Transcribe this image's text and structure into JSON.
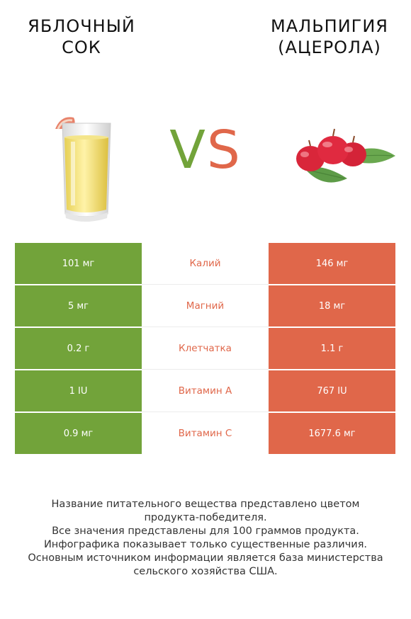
{
  "titles": {
    "left_line1": "ЯБЛОЧНЫЙ",
    "left_line2": "СОК",
    "right_line1": "МАЛЬПИГИЯ",
    "right_line2": "(АЦЕРОЛА)"
  },
  "vs": {
    "v": "V",
    "s": "S"
  },
  "colors": {
    "left": "#72a33a",
    "right": "#e0674a"
  },
  "icons": {
    "left": "glass-of-apple-juice",
    "right": "acerola-cherries"
  },
  "chart_data": {
    "type": "table",
    "columns": [
      "Яблочный сок",
      "Мальпигия (ацерола)"
    ],
    "rows": [
      {
        "nutrient": "Калий",
        "left": "101 мг",
        "right": "146 мг",
        "winner": "right"
      },
      {
        "nutrient": "Магний",
        "left": "5 мг",
        "right": "18 мг",
        "winner": "right"
      },
      {
        "nutrient": "Клетчатка",
        "left": "0.2 г",
        "right": "1.1 г",
        "winner": "right"
      },
      {
        "nutrient": "Витамин A",
        "left": "1 IU",
        "right": "767 IU",
        "winner": "right"
      },
      {
        "nutrient": "Витамин C",
        "left": "0.9 мг",
        "right": "1677.6 мг",
        "winner": "right"
      }
    ]
  },
  "notes": [
    "Название питательного вещества представлено цветом",
    "продукта-победителя.",
    "Все значения представлены для 100 граммов продукта.",
    "Инфографика показывает только существенные различия.",
    "Основным источником информации является база министерства",
    "сельского хозяйства США."
  ]
}
